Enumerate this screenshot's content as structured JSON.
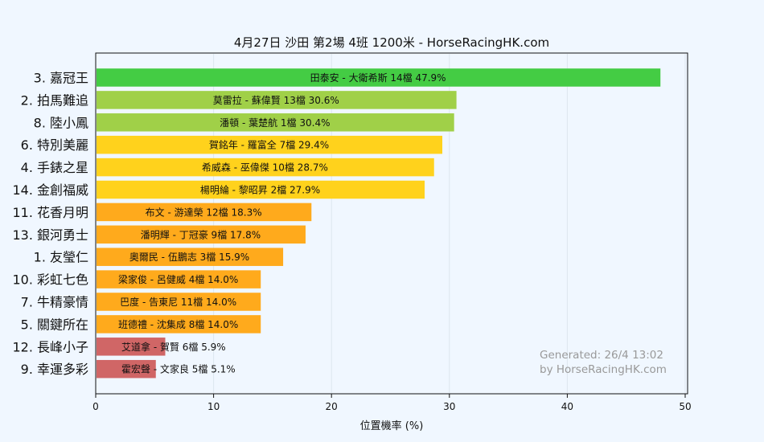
{
  "chart_data": {
    "type": "bar",
    "orientation": "horizontal",
    "title": "4月27日  沙田  第2場  4班  1200米 - HorseRacingHK.com",
    "xlabel": "位置機率 (%)",
    "ylabel": "",
    "xlim": [
      0,
      50
    ],
    "xticks": [
      "0",
      "10",
      "20",
      "30",
      "40",
      "50"
    ],
    "grid": true,
    "categories": [
      "3. 嘉冠王",
      "2. 拍馬難追",
      "8. 陸小鳳",
      "6. 特別美麗",
      "4. 手錶之星",
      "14. 金創福威",
      "11. 花香月明",
      "13. 銀河勇士",
      "1. 友瑩仁",
      "10. 彩虹七色",
      "7. 牛精豪情",
      "5. 關鍵所在",
      "12. 長峰小子",
      "9. 幸運多彩"
    ],
    "values": [
      47.9,
      30.6,
      30.4,
      29.4,
      28.7,
      27.9,
      18.3,
      17.8,
      15.9,
      14.0,
      14.0,
      14.0,
      5.9,
      5.1
    ],
    "bar_labels": [
      "田泰安 - 大衛希斯 14檔  47.9%",
      "莫雷拉 - 蘇偉賢 13檔  30.6%",
      "潘頓 - 葉楚航 1檔  30.4%",
      "賀銘年 - 羅富全 7檔  29.4%",
      "希威森 - 巫偉傑 10檔  28.7%",
      "楊明綸 - 黎昭昇 2檔  27.9%",
      "布文 - 游達榮 12檔  18.3%",
      "潘明輝 - 丁冠豪 9檔  17.8%",
      "奧爾民 - 伍鵬志 3檔  15.9%",
      "梁家俊 - 呂健威 4檔  14.0%",
      "巴度 - 告東尼 11檔  14.0%",
      "班德禮 - 沈集成 8檔  14.0%",
      "艾道拿 - 賀賢 6檔  5.9%",
      "霍宏聲 - 文家良 5檔  5.1%"
    ],
    "bar_colors": [
      "#44cc44",
      "#a0d048",
      "#a0d048",
      "#ffd21c",
      "#ffd21c",
      "#ffd21c",
      "#ffaa1c",
      "#ffaa1c",
      "#ffaa1c",
      "#ffaa1c",
      "#ffaa1c",
      "#ffaa1c",
      "#d06666",
      "#d06666"
    ],
    "watermark": [
      "Generated: 26/4 13:02",
      "by HorseRacingHK.com"
    ]
  }
}
